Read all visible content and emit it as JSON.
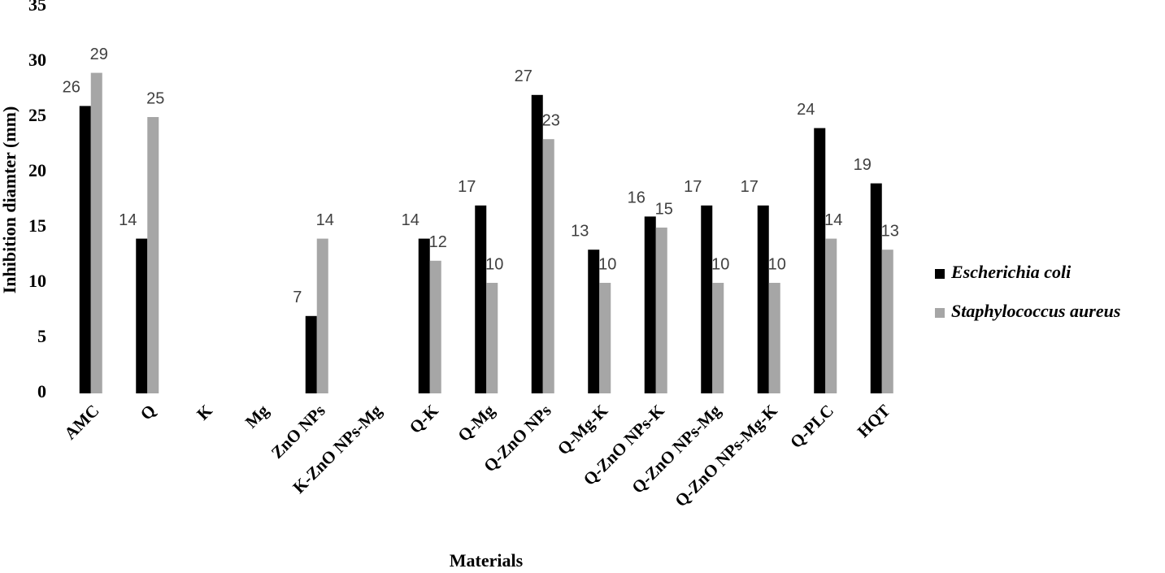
{
  "chart_data": {
    "type": "bar",
    "y_label": "Inhibition diamter (mm)",
    "x_label": "Materials",
    "categories": [
      "AMC",
      "Q",
      "K",
      "Mg",
      "ZnO NPs",
      "K-ZnO NPs-Mg",
      "Q-K",
      "Q-Mg",
      "Q-ZnO NPs",
      "Q-Mg-K",
      "Q-ZnO NPs-K",
      "Q-ZnO NPs-Mg",
      "Q-ZnO NPs-Mg-K",
      "Q-PLC",
      "HQT"
    ],
    "series": [
      {
        "name": "Escherichia coli",
        "color": "#000000",
        "values": [
          26,
          14,
          null,
          null,
          7,
          null,
          14,
          17,
          27,
          13,
          16,
          17,
          17,
          24,
          19
        ]
      },
      {
        "name": "Staphylococcus aureus",
        "color": "#a6a6a6",
        "values": [
          29,
          25,
          null,
          null,
          14,
          null,
          12,
          10,
          23,
          10,
          15,
          10,
          10,
          14,
          13
        ]
      }
    ],
    "ylim": [
      0,
      35
    ],
    "yticks": [
      0,
      5,
      10,
      15,
      20,
      25,
      30,
      35
    ],
    "legend": "right",
    "grid": false
  }
}
